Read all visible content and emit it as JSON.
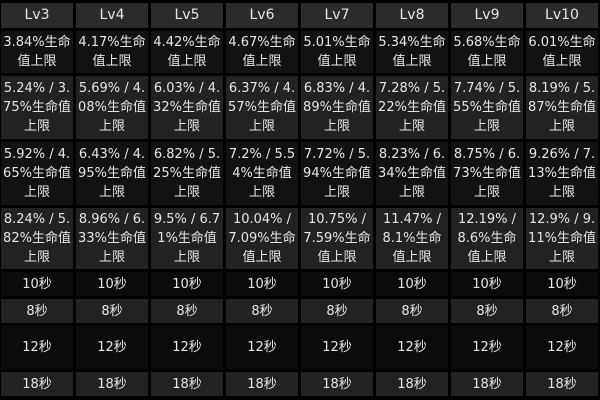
{
  "table": {
    "headers": [
      "Lv3",
      "Lv4",
      "Lv5",
      "Lv6",
      "Lv7",
      "Lv8",
      "Lv9",
      "Lv10"
    ],
    "rows": [
      [
        "3.84%生命值上限",
        "4.17%生命值上限",
        "4.42%生命值上限",
        "4.67%生命值上限",
        "5.01%生命值上限",
        "5.34%生命值上限",
        "5.68%生命值上限",
        "6.01%生命值上限"
      ],
      [
        "5.24% / 3.75%生命值上限",
        "5.69% / 4.08%生命值上限",
        "6.03% / 4.32%生命值上限",
        "6.37% / 4.57%生命值上限",
        "6.83% / 4.89%生命值上限",
        "7.28% / 5.22%生命值上限",
        "7.74% / 5.55%生命值上限",
        "8.19% / 5.87%生命值上限"
      ],
      [
        "5.92% / 4.65%生命值上限",
        "6.43% / 4.95%生命值上限",
        "6.82% / 5.25%生命值上限",
        "7.2% / 5.54%生命值上限",
        "7.72% / 5.94%生命值上限",
        "8.23% / 6.34%生命值上限",
        "8.75% / 6.73%生命值上限",
        "9.26% / 7.13%生命值上限"
      ],
      [
        "8.24% / 5.82%生命值上限",
        "8.96% / 6.33%生命值上限",
        "9.5% / 6.71%生命值上限",
        "10.04% / 7.09%生命值上限",
        "10.75% / 7.59%生命值上限",
        "11.47% / 8.1%生命值上限",
        "12.19% / 8.6%生命值上限",
        "12.9% / 9.11%生命值上限"
      ],
      [
        "10秒",
        "10秒",
        "10秒",
        "10秒",
        "10秒",
        "10秒",
        "10秒",
        "10秒"
      ],
      [
        "8秒",
        "8秒",
        "8秒",
        "8秒",
        "8秒",
        "8秒",
        "8秒",
        "8秒"
      ],
      [
        "12秒",
        "12秒",
        "12秒",
        "12秒",
        "12秒",
        "12秒",
        "12秒",
        "12秒"
      ],
      [
        "18秒",
        "18秒",
        "18秒",
        "18秒",
        "18秒",
        "18秒",
        "18秒",
        "18秒"
      ]
    ]
  }
}
